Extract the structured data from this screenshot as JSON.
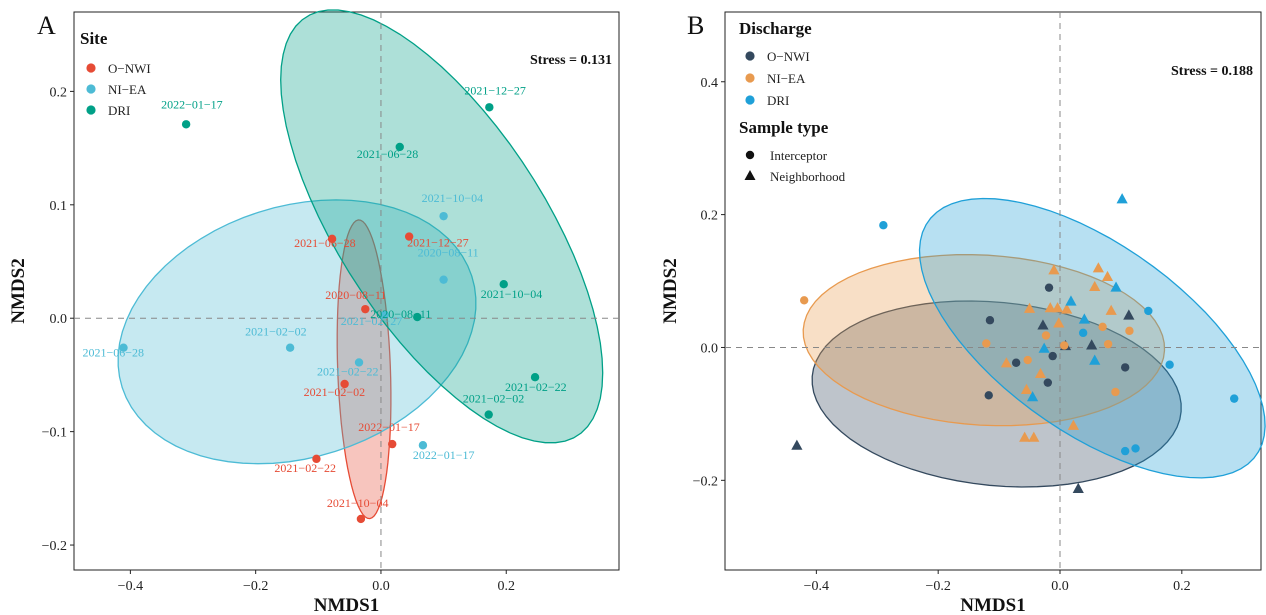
{
  "chart_data": [
    {
      "type": "scatter",
      "panel_label": "A",
      "xlabel": "NMDS1",
      "ylabel": "NMDS2",
      "xlim": [
        -0.49,
        0.38
      ],
      "ylim": [
        -0.222,
        0.27
      ],
      "xticks": [
        -0.4,
        -0.2,
        0.0,
        0.2
      ],
      "xtick_labels": [
        "−0.4",
        "−0.2",
        "0.0",
        "0.2"
      ],
      "yticks": [
        -0.2,
        -0.1,
        0.0,
        0.1,
        0.2
      ],
      "ytick_labels": [
        "−0.2",
        "−0.1",
        "0.0",
        "0.1",
        "0.2"
      ],
      "grid": false,
      "reference_lines": {
        "x": 0,
        "y": 0
      },
      "stress_label": "Stress = 0.131",
      "legend": {
        "title": "Site",
        "placement": "top-left",
        "entries": [
          "O−NWI",
          "NI−EA",
          "DRI"
        ]
      },
      "series": [
        {
          "name": "O−NWI",
          "color": "#E64B35",
          "ellipse": {
            "cx": -0.027,
            "cy": -0.045,
            "rx": 0.042,
            "ry": 0.132,
            "angle": 4
          },
          "points": [
            {
              "x": -0.078,
              "y": 0.07,
              "label": "2021−06−28"
            },
            {
              "x": 0.045,
              "y": 0.072,
              "label": "2021−12−27"
            },
            {
              "x": -0.025,
              "y": 0.008,
              "label": "2020−08−11"
            },
            {
              "x": -0.058,
              "y": -0.058,
              "label": "2021−02−02"
            },
            {
              "x": 0.018,
              "y": -0.111,
              "label": "2022−01−17"
            },
            {
              "x": -0.103,
              "y": -0.124,
              "label": "2021−02−22"
            },
            {
              "x": -0.032,
              "y": -0.177,
              "label": "2021−10−04"
            }
          ]
        },
        {
          "name": "NI−EA",
          "color": "#4DBBD5",
          "ellipse": {
            "cx": -0.134,
            "cy": -0.012,
            "rx": 0.287,
            "ry": 0.113,
            "angle": 6
          },
          "points": [
            {
              "x": 0.1,
              "y": 0.09,
              "label": "2021−10−04"
            },
            {
              "x": 0.1,
              "y": 0.034,
              "label": "2020−08−11"
            },
            {
              "x": 0.006,
              "y": 0.003,
              "label": "2021−02−27"
            },
            {
              "x": -0.145,
              "y": -0.026,
              "label": "2021−02−02"
            },
            {
              "x": -0.411,
              "y": -0.026,
              "label": "2021−06−28"
            },
            {
              "x": -0.035,
              "y": -0.039,
              "label": "2021−02−22"
            },
            {
              "x": 0.067,
              "y": -0.112,
              "label": "2022−01−17"
            }
          ]
        },
        {
          "name": "DRI",
          "color": "#00A087",
          "ellipse": {
            "cx": 0.097,
            "cy": 0.081,
            "rx": 0.296,
            "ry": 0.122,
            "angle": -33
          },
          "points": [
            {
              "x": 0.173,
              "y": 0.186,
              "label": "2021−12−27"
            },
            {
              "x": -0.311,
              "y": 0.171,
              "label": "2022−01−17"
            },
            {
              "x": 0.03,
              "y": 0.151,
              "label": "2021−06−28"
            },
            {
              "x": 0.196,
              "y": 0.03,
              "label": "2021−10−04"
            },
            {
              "x": 0.058,
              "y": 0.001,
              "label": "2020−08−11"
            },
            {
              "x": 0.246,
              "y": -0.052,
              "label": "2021−02−22"
            },
            {
              "x": 0.172,
              "y": -0.085,
              "label": "2021−02−02"
            }
          ]
        }
      ]
    },
    {
      "type": "scatter",
      "panel_label": "B",
      "xlabel": "NMDS1",
      "ylabel": "NMDS2",
      "xlim": [
        -0.55,
        0.33
      ],
      "ylim": [
        -0.335,
        0.505
      ],
      "xticks": [
        -0.4,
        -0.2,
        0.0,
        0.2
      ],
      "xtick_labels": [
        "−0.4",
        "−0.2",
        "0.0",
        "0.2"
      ],
      "yticks": [
        -0.2,
        0.0,
        0.2,
        0.4
      ],
      "ytick_labels": [
        "−0.2",
        "0.0",
        "0.2",
        "0.4"
      ],
      "grid": false,
      "reference_lines": {
        "x": 0,
        "y": 0
      },
      "stress_label": "Stress = 0.188",
      "legend": {
        "title": "Discharge",
        "placement": "top-left",
        "entries": [
          "O−NWI",
          "NI−EA",
          "DRI"
        ],
        "shape_title": "Sample type",
        "shape_entries": [
          {
            "label": "Interceptor",
            "shape": "circle"
          },
          {
            "label": "Neighborhood",
            "shape": "triangle"
          }
        ]
      },
      "series": [
        {
          "name": "O−NWI",
          "color": "#34495E",
          "ellipse": {
            "cx": -0.104,
            "cy": -0.07,
            "rx": 0.304,
            "ry": 0.138,
            "angle": -5
          },
          "points": [
            {
              "x": -0.115,
              "y": 0.041,
              "shape": "circle"
            },
            {
              "x": -0.117,
              "y": -0.072,
              "shape": "circle"
            },
            {
              "x": -0.072,
              "y": -0.023,
              "shape": "circle"
            },
            {
              "x": -0.018,
              "y": 0.09,
              "shape": "circle"
            },
            {
              "x": -0.012,
              "y": -0.013,
              "shape": "circle"
            },
            {
              "x": -0.02,
              "y": -0.053,
              "shape": "circle"
            },
            {
              "x": 0.107,
              "y": -0.03,
              "shape": "circle"
            },
            {
              "x": -0.028,
              "y": 0.033,
              "shape": "triangle"
            },
            {
              "x": 0.052,
              "y": 0.003,
              "shape": "triangle"
            },
            {
              "x": 0.009,
              "y": 0.002,
              "shape": "triangle"
            },
            {
              "x": 0.113,
              "y": 0.048,
              "shape": "triangle"
            },
            {
              "x": -0.432,
              "y": -0.148,
              "shape": "triangle"
            },
            {
              "x": 0.03,
              "y": -0.213,
              "shape": "triangle"
            }
          ]
        },
        {
          "name": "NI−EA",
          "color": "#E89A4F",
          "ellipse": {
            "cx": -0.125,
            "cy": 0.011,
            "rx": 0.297,
            "ry": 0.128,
            "angle": -3
          },
          "points": [
            {
              "x": -0.42,
              "y": 0.071,
              "shape": "circle"
            },
            {
              "x": -0.121,
              "y": 0.006,
              "shape": "circle"
            },
            {
              "x": -0.053,
              "y": -0.019,
              "shape": "circle"
            },
            {
              "x": -0.023,
              "y": 0.018,
              "shape": "circle"
            },
            {
              "x": 0.007,
              "y": 0.003,
              "shape": "circle"
            },
            {
              "x": 0.07,
              "y": 0.031,
              "shape": "circle"
            },
            {
              "x": 0.079,
              "y": 0.005,
              "shape": "circle"
            },
            {
              "x": 0.114,
              "y": 0.025,
              "shape": "circle"
            },
            {
              "x": 0.091,
              "y": -0.067,
              "shape": "circle"
            },
            {
              "x": -0.05,
              "y": 0.058,
              "shape": "triangle"
            },
            {
              "x": -0.016,
              "y": 0.059,
              "shape": "triangle"
            },
            {
              "x": -0.004,
              "y": 0.059,
              "shape": "triangle"
            },
            {
              "x": 0.011,
              "y": 0.057,
              "shape": "triangle"
            },
            {
              "x": -0.002,
              "y": 0.036,
              "shape": "triangle"
            },
            {
              "x": -0.088,
              "y": -0.024,
              "shape": "triangle"
            },
            {
              "x": -0.055,
              "y": -0.064,
              "shape": "triangle"
            },
            {
              "x": -0.032,
              "y": -0.04,
              "shape": "triangle"
            },
            {
              "x": -0.058,
              "y": -0.136,
              "shape": "triangle"
            },
            {
              "x": -0.043,
              "y": -0.136,
              "shape": "triangle"
            },
            {
              "x": 0.022,
              "y": -0.118,
              "shape": "triangle"
            },
            {
              "x": -0.01,
              "y": 0.116,
              "shape": "triangle"
            },
            {
              "x": 0.063,
              "y": 0.119,
              "shape": "triangle"
            },
            {
              "x": 0.078,
              "y": 0.106,
              "shape": "triangle"
            },
            {
              "x": 0.057,
              "y": 0.091,
              "shape": "triangle"
            },
            {
              "x": 0.084,
              "y": 0.055,
              "shape": "triangle"
            }
          ]
        },
        {
          "name": "DRI",
          "color": "#1FA0D8",
          "ellipse": {
            "cx": 0.053,
            "cy": 0.014,
            "rx": 0.322,
            "ry": 0.145,
            "angle": -32
          },
          "points": [
            {
              "x": -0.29,
              "y": 0.184,
              "shape": "circle"
            },
            {
              "x": 0.145,
              "y": 0.055,
              "shape": "circle"
            },
            {
              "x": 0.038,
              "y": 0.022,
              "shape": "circle"
            },
            {
              "x": 0.18,
              "y": -0.026,
              "shape": "circle"
            },
            {
              "x": 0.286,
              "y": -0.077,
              "shape": "circle"
            },
            {
              "x": 0.124,
              "y": -0.152,
              "shape": "circle"
            },
            {
              "x": 0.107,
              "y": -0.156,
              "shape": "circle"
            },
            {
              "x": 0.102,
              "y": 0.223,
              "shape": "triangle"
            },
            {
              "x": 0.018,
              "y": 0.069,
              "shape": "triangle"
            },
            {
              "x": 0.04,
              "y": 0.042,
              "shape": "triangle"
            },
            {
              "x": 0.092,
              "y": 0.09,
              "shape": "triangle"
            },
            {
              "x": -0.026,
              "y": -0.002,
              "shape": "triangle"
            },
            {
              "x": 0.057,
              "y": -0.02,
              "shape": "triangle"
            },
            {
              "x": -0.045,
              "y": -0.075,
              "shape": "triangle"
            }
          ]
        }
      ]
    }
  ]
}
